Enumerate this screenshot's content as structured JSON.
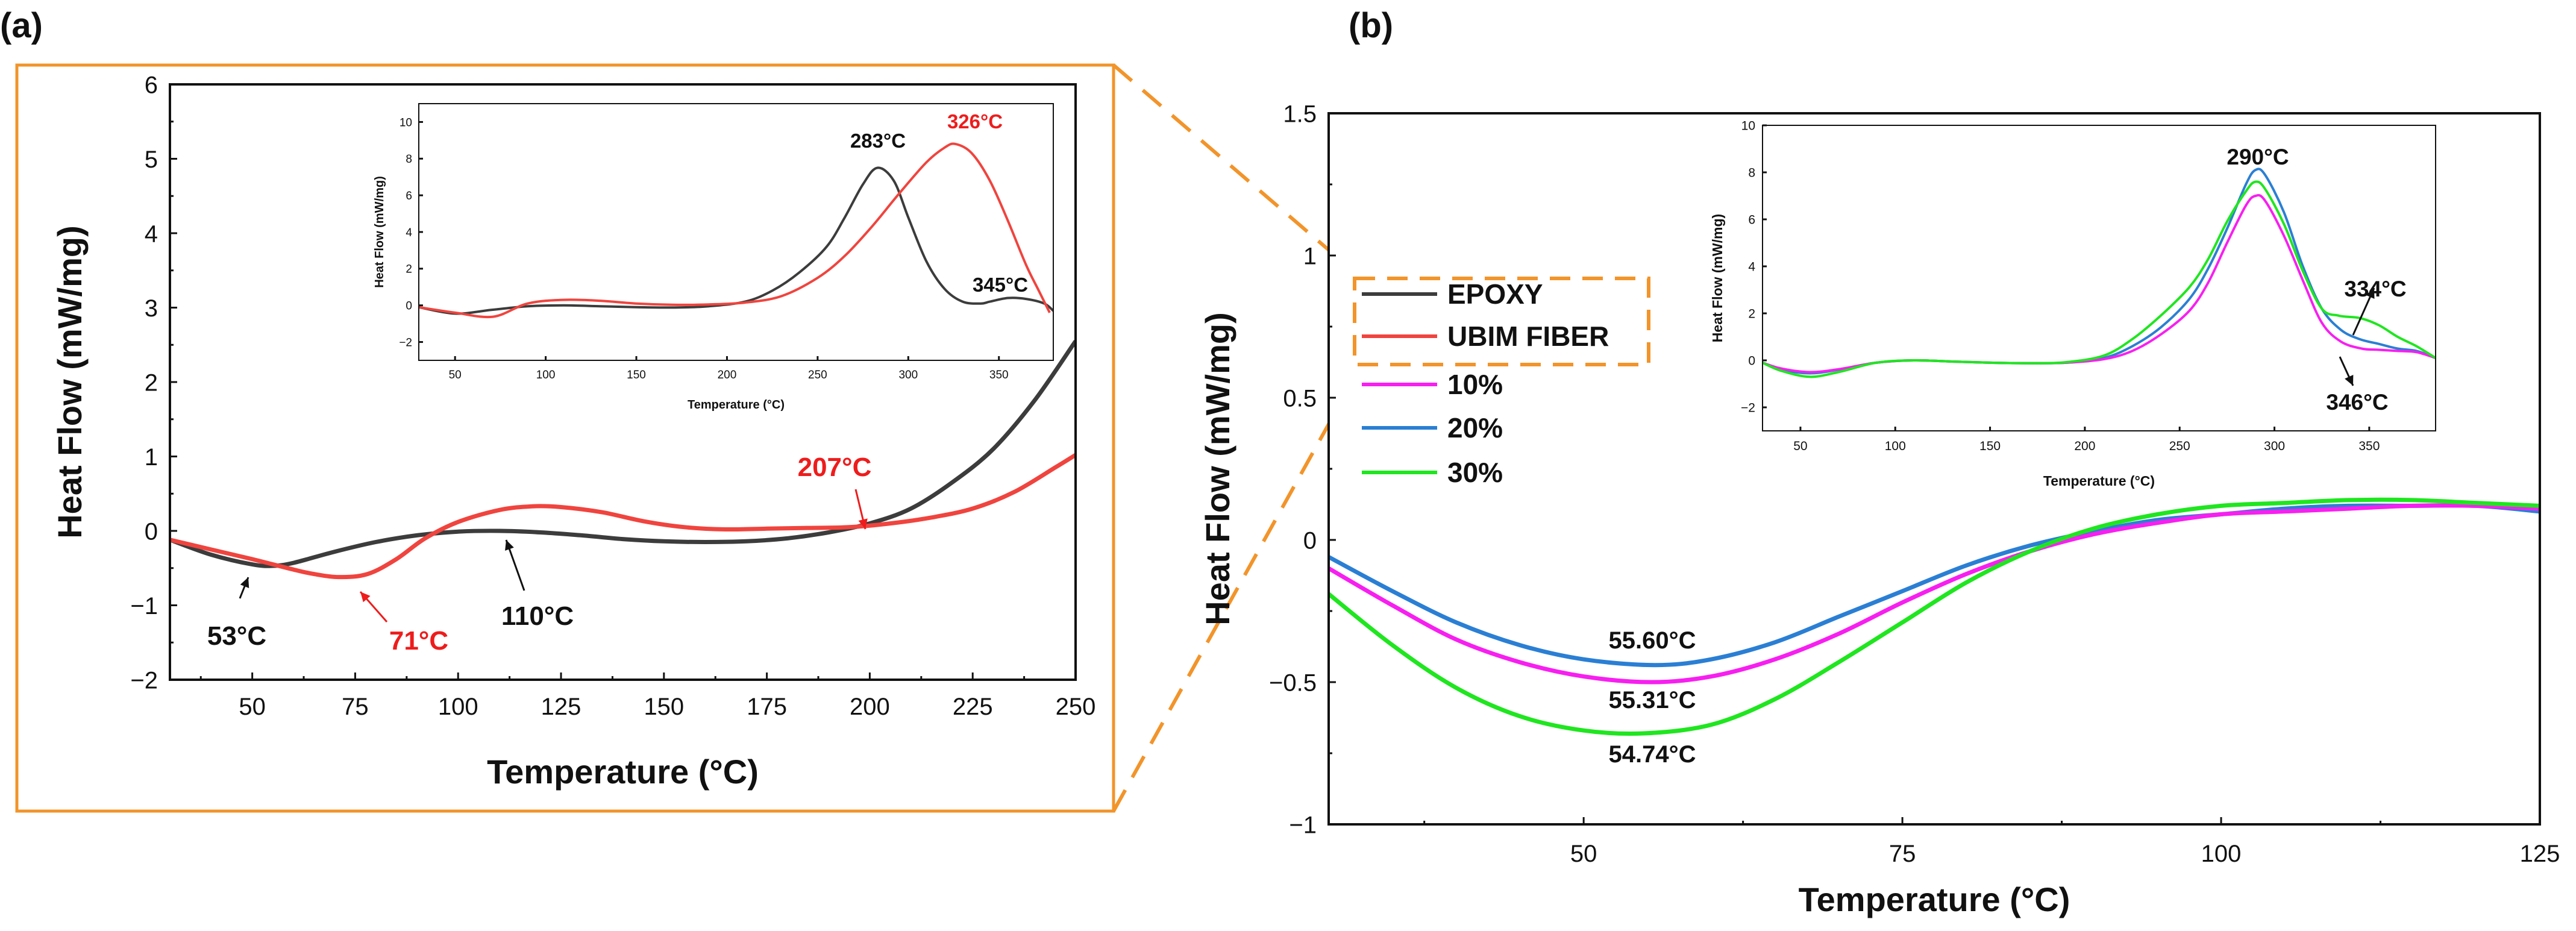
{
  "panels": {
    "a": {
      "label": "(a)"
    },
    "b": {
      "label": "(b)"
    }
  },
  "colors": {
    "epoxy": "#3c3c3c",
    "ubim": "#f0443e",
    "p10": "#f71ff0",
    "p20": "#2a7fd4",
    "p30": "#1fe61f",
    "frame": "#f2942a",
    "highlight_red": "#ee1c1c"
  },
  "chart_data": [
    {
      "id": "a-main",
      "type": "line",
      "title": "",
      "xlabel": "Temperature (°C)",
      "ylabel": "Heat Flow (mW/mg)",
      "xlim": [
        30,
        250
      ],
      "ylim": [
        -2,
        6
      ],
      "xticks": [
        50,
        75,
        100,
        125,
        150,
        175,
        200,
        225,
        250
      ],
      "yticks": [
        -2,
        -1,
        0,
        1,
        2,
        3,
        4,
        5,
        6
      ],
      "series": [
        {
          "name": "EPOXY",
          "color": "#3c3c3c",
          "x": [
            30,
            40,
            50,
            55,
            60,
            70,
            80,
            90,
            100,
            110,
            120,
            130,
            140,
            150,
            160,
            170,
            180,
            190,
            200,
            210,
            220,
            230,
            240,
            250
          ],
          "y": [
            -0.12,
            -0.32,
            -0.45,
            -0.47,
            -0.43,
            -0.28,
            -0.15,
            -0.06,
            -0.01,
            0.0,
            -0.02,
            -0.06,
            -0.11,
            -0.14,
            -0.15,
            -0.14,
            -0.1,
            -0.02,
            0.1,
            0.3,
            0.65,
            1.1,
            1.75,
            2.55
          ]
        },
        {
          "name": "UBIM FIBER",
          "color": "#f0443e",
          "x": [
            30,
            40,
            50,
            60,
            65,
            71,
            78,
            85,
            92,
            100,
            110,
            118,
            125,
            135,
            145,
            155,
            165,
            175,
            185,
            195,
            205,
            215,
            225,
            235,
            245,
            250
          ],
          "y": [
            -0.12,
            -0.25,
            -0.38,
            -0.52,
            -0.58,
            -0.62,
            -0.58,
            -0.38,
            -0.1,
            0.12,
            0.28,
            0.33,
            0.32,
            0.25,
            0.13,
            0.05,
            0.02,
            0.03,
            0.04,
            0.05,
            0.1,
            0.18,
            0.3,
            0.52,
            0.85,
            1.02
          ]
        }
      ],
      "annotations": [
        {
          "text": "53°C",
          "color": "black",
          "x": 53,
          "y": -0.47
        },
        {
          "text": "71°C",
          "color": "red",
          "x": 71,
          "y": -0.62
        },
        {
          "text": "110°C",
          "color": "black",
          "x": 110,
          "y": 0.0
        },
        {
          "text": "207°C",
          "color": "red",
          "x": 207,
          "y": 0.06
        }
      ]
    },
    {
      "id": "a-inset",
      "type": "line",
      "xlabel": "Temperature (°C)",
      "ylabel": "Heat Flow (mW/mg)",
      "xlim": [
        30,
        380
      ],
      "ylim": [
        -3,
        11
      ],
      "xticks": [
        50,
        100,
        150,
        200,
        250,
        300,
        350
      ],
      "yticks": [
        -2,
        0,
        2,
        4,
        6,
        8,
        10
      ],
      "series": [
        {
          "name": "EPOXY",
          "color": "#3c3c3c",
          "x": [
            30,
            50,
            70,
            90,
            110,
            130,
            150,
            170,
            190,
            210,
            225,
            240,
            255,
            265,
            275,
            283,
            292,
            300,
            310,
            320,
            330,
            340,
            345,
            355,
            365,
            375,
            380
          ],
          "y": [
            -0.1,
            -0.45,
            -0.25,
            -0.05,
            0.0,
            -0.05,
            -0.1,
            -0.12,
            -0.05,
            0.2,
            0.8,
            1.8,
            3.2,
            4.8,
            6.6,
            7.5,
            6.8,
            4.8,
            2.4,
            0.9,
            0.2,
            0.1,
            0.2,
            0.4,
            0.35,
            0.1,
            -0.3
          ]
        },
        {
          "name": "UBIM FIBER",
          "color": "#f0443e",
          "x": [
            30,
            50,
            71,
            90,
            110,
            130,
            150,
            170,
            190,
            210,
            230,
            250,
            265,
            280,
            295,
            310,
            320,
            326,
            335,
            345,
            355,
            365,
            372,
            378
          ],
          "y": [
            -0.1,
            -0.4,
            -0.62,
            0.1,
            0.3,
            0.25,
            0.1,
            0.03,
            0.05,
            0.15,
            0.5,
            1.5,
            2.7,
            4.3,
            6.1,
            7.8,
            8.6,
            8.8,
            8.3,
            6.8,
            4.6,
            2.2,
            0.8,
            -0.4
          ]
        }
      ],
      "annotations": [
        {
          "text": "283°C",
          "color": "black",
          "x": 283,
          "y": 7.5
        },
        {
          "text": "326°C",
          "color": "red",
          "x": 326,
          "y": 8.8
        },
        {
          "text": "345°C",
          "color": "black",
          "x": 345,
          "y": 0.2
        }
      ]
    },
    {
      "id": "b-main",
      "type": "line",
      "xlabel": "Temperature (°C)",
      "ylabel": "Heat Flow (mW/mg)",
      "xlim": [
        30,
        125
      ],
      "ylim": [
        -1,
        1.5
      ],
      "xticks": [
        50,
        75,
        100,
        125
      ],
      "yticks": [
        -1,
        -0.5,
        0,
        0.5,
        1,
        1.5
      ],
      "series": [
        {
          "name": "20%",
          "color": "#2a7fd4",
          "x": [
            30,
            35,
            40,
            45,
            50,
            55.6,
            60,
            65,
            70,
            75,
            80,
            85,
            90,
            95,
            100,
            105,
            110,
            115,
            120,
            125
          ],
          "y": [
            -0.06,
            -0.18,
            -0.29,
            -0.37,
            -0.42,
            -0.44,
            -0.42,
            -0.36,
            -0.27,
            -0.18,
            -0.09,
            -0.02,
            0.03,
            0.07,
            0.09,
            0.11,
            0.12,
            0.12,
            0.12,
            0.1
          ]
        },
        {
          "name": "10%",
          "color": "#f71ff0",
          "x": [
            30,
            35,
            40,
            45,
            50,
            55.31,
            60,
            65,
            70,
            75,
            80,
            85,
            90,
            95,
            100,
            105,
            110,
            115,
            120,
            125
          ],
          "y": [
            -0.1,
            -0.23,
            -0.35,
            -0.43,
            -0.48,
            -0.5,
            -0.48,
            -0.42,
            -0.33,
            -0.22,
            -0.12,
            -0.04,
            0.02,
            0.06,
            0.09,
            0.1,
            0.11,
            0.12,
            0.12,
            0.11
          ]
        },
        {
          "name": "30%",
          "color": "#1fe61f",
          "x": [
            30,
            35,
            40,
            45,
            50,
            54.74,
            60,
            65,
            70,
            75,
            80,
            85,
            90,
            95,
            100,
            105,
            110,
            115,
            120,
            125
          ],
          "y": [
            -0.19,
            -0.37,
            -0.52,
            -0.62,
            -0.67,
            -0.68,
            -0.65,
            -0.56,
            -0.43,
            -0.29,
            -0.15,
            -0.04,
            0.04,
            0.09,
            0.12,
            0.13,
            0.14,
            0.14,
            0.13,
            0.12
          ]
        }
      ],
      "legend": {
        "placement": "left",
        "entries": [
          "EPOXY",
          "UBIM FIBER",
          "10%",
          "20%",
          "30%"
        ]
      },
      "annotations": [
        {
          "text": "55.60°C",
          "x": 55.6,
          "y": -0.44
        },
        {
          "text": "55.31°C",
          "x": 55.31,
          "y": -0.5
        },
        {
          "text": "54.74°C",
          "x": 54.74,
          "y": -0.68
        }
      ]
    },
    {
      "id": "b-inset",
      "type": "line",
      "xlabel": "Temperature (°C)",
      "ylabel": "Heat Flow (mW/mg)",
      "xlim": [
        30,
        385
      ],
      "ylim": [
        -3,
        10
      ],
      "xticks": [
        50,
        100,
        150,
        200,
        250,
        300,
        350
      ],
      "yticks": [
        -2,
        0,
        2,
        4,
        6,
        8,
        10
      ],
      "series": [
        {
          "name": "20%",
          "color": "#2a7fd4",
          "x": [
            30,
            40,
            55,
            70,
            90,
            110,
            130,
            150,
            170,
            190,
            210,
            225,
            240,
            255,
            265,
            275,
            285,
            290,
            295,
            305,
            315,
            325,
            335,
            345,
            355,
            365,
            375,
            385
          ],
          "y": [
            -0.1,
            -0.4,
            -0.55,
            -0.4,
            -0.1,
            0.0,
            -0.05,
            -0.1,
            -0.12,
            -0.1,
            0.1,
            0.6,
            1.4,
            2.6,
            3.9,
            5.6,
            7.5,
            8.1,
            7.9,
            6.3,
            4.0,
            2.2,
            1.3,
            0.9,
            0.7,
            0.5,
            0.4,
            0.1
          ]
        },
        {
          "name": "10%",
          "color": "#f71ff0",
          "x": [
            30,
            40,
            55,
            70,
            90,
            110,
            130,
            150,
            170,
            190,
            210,
            225,
            240,
            255,
            265,
            275,
            285,
            290,
            295,
            305,
            315,
            325,
            335,
            346,
            355,
            365,
            375,
            385
          ],
          "y": [
            -0.1,
            -0.35,
            -0.5,
            -0.38,
            -0.1,
            0.0,
            -0.05,
            -0.1,
            -0.12,
            -0.1,
            0.05,
            0.4,
            1.1,
            2.1,
            3.3,
            5.0,
            6.6,
            7.0,
            6.8,
            5.3,
            3.4,
            1.6,
            0.8,
            0.5,
            0.45,
            0.4,
            0.35,
            0.1
          ]
        },
        {
          "name": "30%",
          "color": "#1fe61f",
          "x": [
            30,
            40,
            55,
            70,
            90,
            110,
            130,
            150,
            170,
            190,
            210,
            225,
            240,
            255,
            265,
            275,
            285,
            290,
            295,
            305,
            315,
            325,
            334,
            345,
            355,
            365,
            375,
            385
          ],
          "y": [
            -0.1,
            -0.45,
            -0.7,
            -0.5,
            -0.1,
            0.0,
            -0.05,
            -0.1,
            -0.12,
            -0.08,
            0.2,
            0.9,
            1.9,
            3.1,
            4.3,
            5.9,
            7.2,
            7.6,
            7.3,
            5.8,
            3.8,
            2.2,
            1.9,
            1.8,
            1.5,
            1.0,
            0.6,
            0.1
          ]
        }
      ],
      "annotations": [
        {
          "text": "290°C",
          "x": 290,
          "y": 8.1
        },
        {
          "text": "334°C",
          "x": 334,
          "y": 1.9
        },
        {
          "text": "346°C",
          "x": 346,
          "y": 0.5
        }
      ]
    }
  ]
}
